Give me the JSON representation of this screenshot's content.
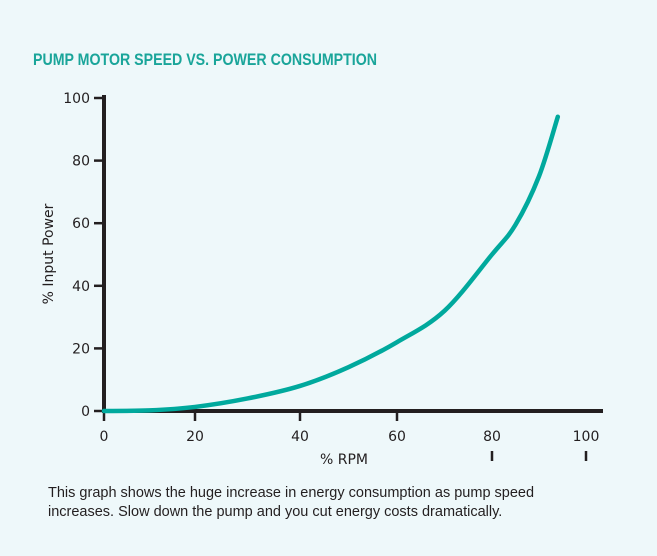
{
  "chart_data": {
    "type": "line",
    "title": "PUMP MOTOR SPEED VS. POWER CONSUMPTION",
    "xlabel": "% RPM",
    "ylabel": "% Input Power",
    "xlim": [
      0,
      100
    ],
    "ylim": [
      0,
      100
    ],
    "x_ticks": [
      "0",
      "20",
      "40",
      "60",
      "80",
      "100"
    ],
    "y_ticks": [
      "0",
      "20",
      "40",
      "60",
      "80",
      "100"
    ],
    "grid": false,
    "series": [
      {
        "color": "#00a99d",
        "x": [
          0,
          10,
          20,
          30,
          40,
          50,
          60,
          70,
          80,
          85,
          90,
          94
        ],
        "y": [
          0,
          0.2,
          1.3,
          4,
          8,
          14,
          22,
          32,
          50,
          59.5,
          75,
          94
        ]
      }
    ],
    "caption_lines": [
      "This graph shows the huge increase in energy consumption as pump speed",
      "increases. Slow down the pump and you cut energy costs dramatically."
    ]
  },
  "colors": {
    "background": "#eef8fa",
    "title": "#1aa59a",
    "axis": "#231f20",
    "curve": "#00a99d"
  }
}
